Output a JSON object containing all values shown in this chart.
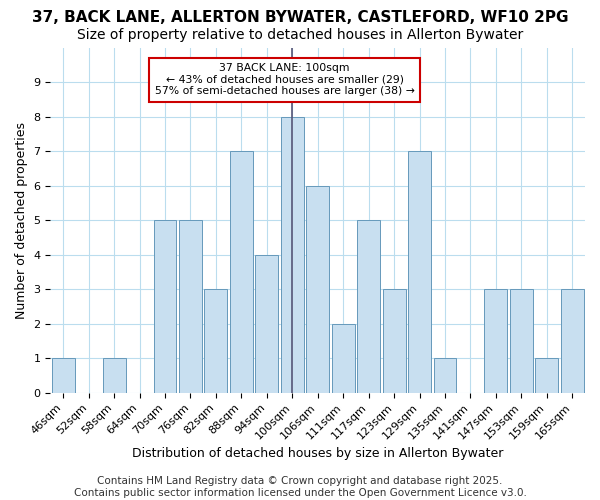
{
  "title1": "37, BACK LANE, ALLERTON BYWATER, CASTLEFORD, WF10 2PG",
  "title2": "Size of property relative to detached houses in Allerton Bywater",
  "xlabel": "Distribution of detached houses by size in Allerton Bywater",
  "ylabel": "Number of detached properties",
  "categories": [
    "46sqm",
    "52sqm",
    "58sqm",
    "64sqm",
    "70sqm",
    "76sqm",
    "82sqm",
    "88sqm",
    "94sqm",
    "100sqm",
    "106sqm",
    "111sqm",
    "117sqm",
    "123sqm",
    "129sqm",
    "135sqm",
    "141sqm",
    "147sqm",
    "153sqm",
    "159sqm",
    "165sqm"
  ],
  "values": [
    1,
    0,
    1,
    0,
    5,
    5,
    3,
    7,
    4,
    8,
    6,
    2,
    5,
    3,
    7,
    1,
    0,
    3,
    3,
    1,
    3
  ],
  "bar_color": "#c8dff0",
  "bar_edge_color": "#6699bb",
  "highlight_index": 9,
  "highlight_line_color": "#555577",
  "ylim": [
    0,
    10
  ],
  "yticks": [
    0,
    1,
    2,
    3,
    4,
    5,
    6,
    7,
    8,
    9,
    10
  ],
  "annotation_text": "37 BACK LANE: 100sqm\n← 43% of detached houses are smaller (29)\n57% of semi-detached houses are larger (38) →",
  "annotation_box_color": "#ffffff",
  "annotation_box_edge": "#cc0000",
  "footer": "Contains HM Land Registry data © Crown copyright and database right 2025.\nContains public sector information licensed under the Open Government Licence v3.0.",
  "bg_color": "#ffffff",
  "grid_color": "#bbddee",
  "title_fontsize": 11,
  "subtitle_fontsize": 10,
  "tick_fontsize": 8,
  "ylabel_fontsize": 9,
  "xlabel_fontsize": 9,
  "footer_fontsize": 7.5
}
